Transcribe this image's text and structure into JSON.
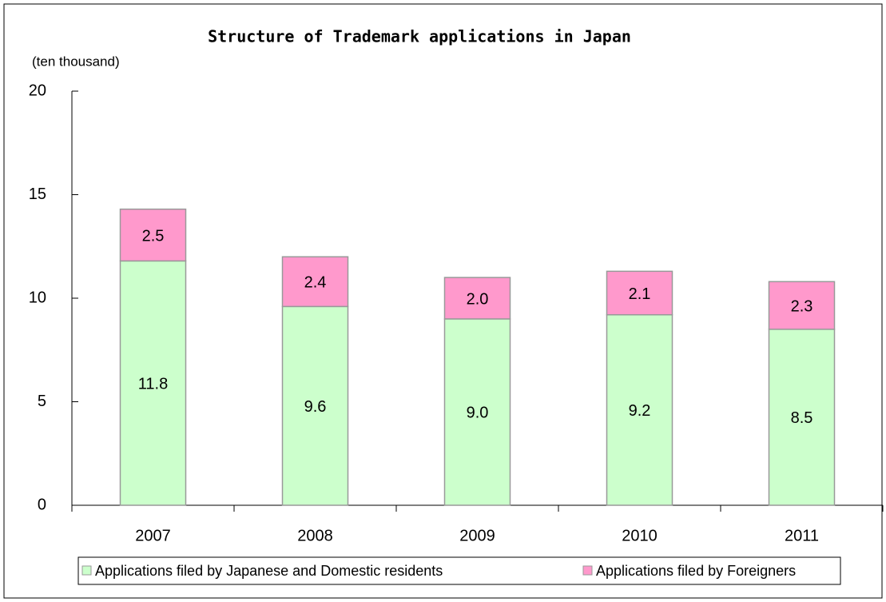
{
  "chart_data": {
    "type": "stacked_bar",
    "title": "Structure of Trademark applications in Japan",
    "y_label": "(ten thousand)",
    "categories": [
      "2007",
      "2008",
      "2009",
      "2010",
      "2011"
    ],
    "series": [
      {
        "name": "Applications filed by Japanese and Domestic residents",
        "color": "#ccffcc",
        "values": [
          11.8,
          9.6,
          9.0,
          9.2,
          8.5
        ],
        "value_labels": [
          "11.8",
          "9.6",
          "9.0",
          "9.2",
          "8.5"
        ]
      },
      {
        "name": "Applications filed by Foreigners",
        "color": "#ff99cc",
        "values": [
          2.5,
          2.4,
          2.0,
          2.1,
          2.3
        ],
        "value_labels": [
          "2.5",
          "2.4",
          "2.0",
          "2.1",
          "2.3"
        ]
      }
    ],
    "ylim": [
      0,
      20
    ],
    "yticks": [
      0,
      5,
      10,
      15,
      20
    ],
    "legend": "bottom"
  }
}
